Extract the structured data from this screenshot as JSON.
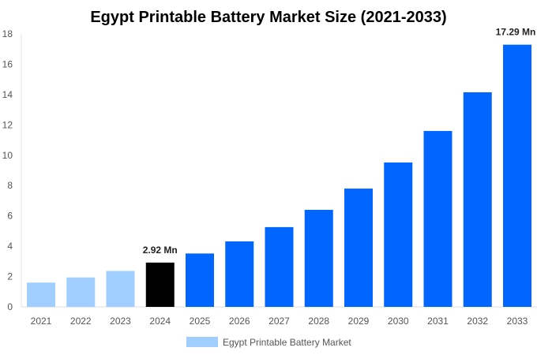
{
  "chart_data": {
    "type": "bar",
    "title": "Egypt Printable Battery Market Size (2021-2033)",
    "categories": [
      "2021",
      "2022",
      "2023",
      "2024",
      "2025",
      "2026",
      "2027",
      "2028",
      "2029",
      "2030",
      "2031",
      "2032",
      "2033"
    ],
    "series": [
      {
        "name": "Egypt Printable Battery Market",
        "values": [
          1.6,
          1.94,
          2.37,
          2.92,
          3.52,
          4.32,
          5.26,
          6.4,
          7.8,
          9.52,
          11.6,
          14.15,
          17.29
        ]
      }
    ],
    "data_labels": [
      {
        "category": "2024",
        "text": "2.92 Mn"
      },
      {
        "category": "2033",
        "text": "17.29 Mn"
      }
    ],
    "ylim": [
      0,
      18
    ],
    "yticks": [
      0,
      2,
      4,
      6,
      8,
      10,
      12,
      14,
      16,
      18
    ],
    "grid": false,
    "legend": "bottom",
    "colors": {
      "historical": "#a0cfff",
      "base_year": "#000000",
      "forecast": "#0066ff"
    }
  }
}
